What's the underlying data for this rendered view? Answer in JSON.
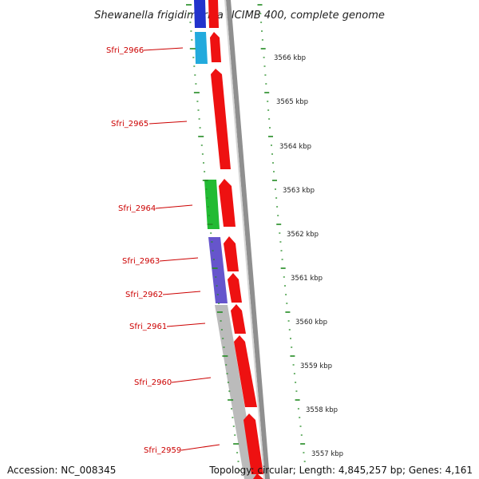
{
  "title": "Shewanella frigidimarina NCIMB 400, complete genome",
  "footer": {
    "accession": "Accession: NC_008345",
    "topology": "Topology: circular; Length: 4,845,257 bp; Genes: 4,161"
  },
  "gene_labels": [
    "Sfri_2966",
    "Sfri_2965",
    "Sfri_2964",
    "Sfri_2963",
    "Sfri_2962",
    "Sfri_2961",
    "Sfri_2960",
    "Sfri_2959"
  ],
  "kbp_labels": [
    "3566 kbp",
    "3565 kbp",
    "3564 kbp",
    "3563 kbp",
    "3562 kbp",
    "3561 kbp",
    "3560 kbp",
    "3559 kbp",
    "3558 kbp",
    "3557 kbp"
  ],
  "colors": {
    "forward_cds": "#ee1111",
    "label_red": "#cc0000",
    "ruler_green": "#228b22",
    "backbone_gray": "#999999",
    "cog_blue": "#2233cc",
    "cog_cyan": "#22aadd",
    "cog_green": "#22bb33",
    "cog_purple": "#6655cc",
    "cog_gray": "#bbbbbb"
  }
}
